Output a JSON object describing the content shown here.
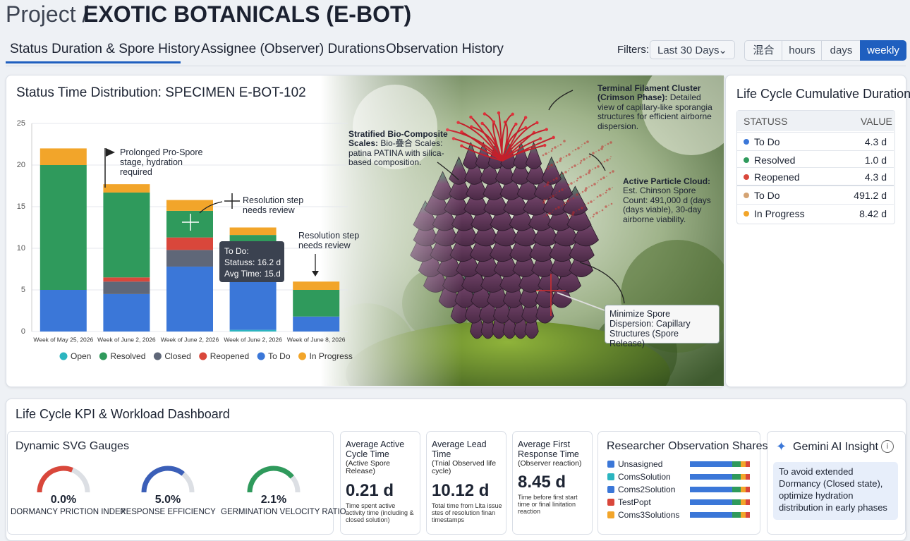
{
  "header": {
    "project_label": "Project /",
    "title": "EXOTIC BOTANICALS (E-BOT)"
  },
  "tabs": [
    "Status Duration & Spore History",
    "Assignee (Observer) Durations",
    "Observation History"
  ],
  "filters": {
    "label": "Filters:",
    "range": "Last 30 Days",
    "units": [
      "混合",
      "hours",
      "days",
      "weekly"
    ]
  },
  "chart_data": {
    "type": "bar",
    "stacked": true,
    "title": "Status Time Distribution: SPECIMEN E-BOT-102",
    "categories": [
      "Week of May 25, 2026",
      "Week of June 2, 2026",
      "Week of June 2, 2026",
      "Week of June 2, 2026",
      "Week of June 8, 2026"
    ],
    "series": [
      {
        "name": "Open",
        "color": "#2bb5c0",
        "values": [
          0,
          0,
          0,
          0.2,
          0
        ]
      },
      {
        "name": "Resolved",
        "color": "#2f9a5c",
        "values": [
          15,
          10.2,
          3.2,
          1.1,
          3.2
        ]
      },
      {
        "name": "Closed",
        "color": "#5f6778",
        "values": [
          0,
          1.5,
          2,
          0,
          0
        ]
      },
      {
        "name": "Reopened",
        "color": "#d9473b",
        "values": [
          0,
          0.5,
          1.5,
          0,
          0
        ]
      },
      {
        "name": "To Do",
        "color": "#3b77d8",
        "values": [
          5,
          4.5,
          7.8,
          10.3,
          1.8
        ]
      },
      {
        "name": "In Progress",
        "color": "#f2a52a",
        "values": [
          2,
          1,
          1.3,
          0.9,
          1
        ]
      }
    ],
    "ylim": [
      0,
      25
    ],
    "yticks": [
      0,
      5,
      10,
      15,
      20,
      25
    ],
    "grid": true,
    "legend": "bottom",
    "annotations": [
      "Prolonged Pro-Spore stage, hydration required",
      "Resolution step needs review",
      "Resolution step needs review"
    ],
    "tooltip": [
      "To Do:",
      "Statuss: 16.2 d",
      "Avg Time: 15.d"
    ]
  },
  "callouts": [
    {
      "heading": "Terminal Filament Cluster (Crimson Phase):",
      "text": "Detailed view of capillary-like sporangia structures for efficient airborne dispersion."
    },
    {
      "heading": "Stratified Bio-Composite Scales:",
      "text": "Bio-疊合 Scales: patina PATINA with silica-based composition."
    },
    {
      "heading": "Active Particle Cloud:",
      "text": "Est. Chinson Spore Count: 491,000 d (days (days viable), 30-day airborne viability."
    },
    {
      "heading": "Minimize Spore Dispersion: Capillary Structures (Spore Release)"
    }
  ],
  "durations": {
    "title": "Life Cycle Cumulative Durations",
    "columns": [
      "STATUSS",
      "VALUE"
    ],
    "rows": [
      {
        "status": "To Do",
        "value": "4.3 d",
        "color": "#3b77d8"
      },
      {
        "status": "Resolved",
        "value": "1.0 d",
        "color": "#2f9a5c"
      },
      {
        "status": "Reopened",
        "value": "4.3 d",
        "color": "#d9473b"
      },
      {
        "status": "To Do",
        "value": "491.2 d",
        "color": "#d4a373"
      },
      {
        "status": "In Progress",
        "value": "8.42 d",
        "color": "#f2a52a"
      }
    ]
  },
  "dashboard": {
    "title": "Life Cycle KPI & Workload Dashboard",
    "gauges": {
      "title": "Dynamic SVG Gauges",
      "items": [
        {
          "value": "0.0%",
          "label": "DORMANCY PRICTION INDEX"
        },
        {
          "value": "5.0%",
          "label": "RESPONSE EFFICIENCY"
        },
        {
          "value": "2.1%",
          "label": "GERMINATION VELOCITY RATIO"
        }
      ]
    },
    "kpis": [
      {
        "title": "Average Active Cycle Time",
        "subtitle": "(Active Spore Release)",
        "value": "0.21 d",
        "note": "Time spent active activity time (including & closed solution)"
      },
      {
        "title": "Average Lead Time",
        "subtitle": "(Tnial Observed life cycle)",
        "value": "10.12 d",
        "note": "Total time from Llta issue stes of resolution finan timestamps"
      },
      {
        "title": "Average First Response Time",
        "subtitle": "(Observer reaction)",
        "value": "8.45 d",
        "note": "Time before first start time or final linitation reaction"
      }
    ],
    "shares": {
      "title": "Researcher Observation Shares",
      "items": [
        {
          "name": "Unsasigned",
          "color": "#3b77d8"
        },
        {
          "name": "ComsSolution",
          "color": "#2bb5c0"
        },
        {
          "name": "Coms2Solution",
          "color": "#3b77d8"
        },
        {
          "name": "TestPopt",
          "color": "#d9473b"
        },
        {
          "name": "Coms3Solutions",
          "color": "#f2a52a"
        }
      ]
    },
    "insight": {
      "title": "Gemini AI Insight",
      "text": "To avoid extended Dormancy (Closed state), optimize hydration distribution in early phases"
    }
  }
}
